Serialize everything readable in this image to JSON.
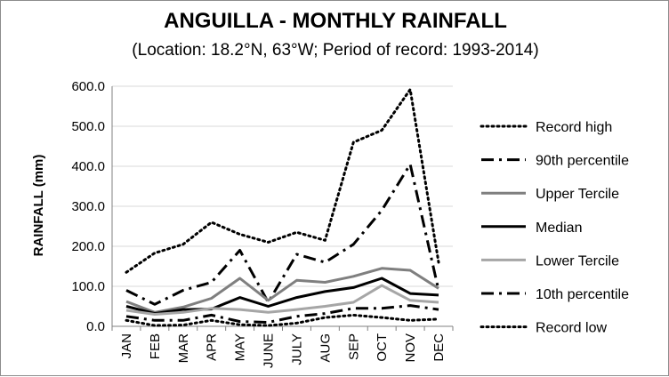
{
  "chart_data": {
    "type": "line",
    "title": "ANGUILLA - MONTHLY RAINFALL",
    "subtitle": "(Location: 18.2°N, 63°W; Period of record: 1993-2014)",
    "xlabel": "",
    "ylabel": "RAINFALL (mm)",
    "ylim": [
      0,
      600
    ],
    "yticks": [
      "0.0",
      "100.0",
      "200.0",
      "300.0",
      "400.0",
      "500.0",
      "600.0"
    ],
    "categories": [
      "JAN",
      "FEB",
      "MAR",
      "APR",
      "MAY",
      "JUNE",
      "JULY",
      "AUG",
      "SEP",
      "OCT",
      "NOV",
      "DEC"
    ],
    "grid": "horizontal",
    "legend_position": "right",
    "series": [
      {
        "name": "Record high",
        "style": "dotted",
        "color": "#000000",
        "values": [
          135,
          183,
          205,
          260,
          230,
          210,
          235,
          215,
          460,
          490,
          592,
          160
        ]
      },
      {
        "name": "90th percentile",
        "style": "dashdot",
        "color": "#000000",
        "values": [
          90,
          55,
          90,
          110,
          190,
          60,
          180,
          160,
          205,
          290,
          405,
          90
        ]
      },
      {
        "name": "Upper Tercile",
        "style": "solid",
        "color": "#7f7f7f",
        "values": [
          62,
          35,
          48,
          70,
          120,
          65,
          115,
          110,
          125,
          145,
          140,
          95
        ]
      },
      {
        "name": "Median",
        "style": "solid",
        "color": "#000000",
        "values": [
          50,
          32,
          42,
          43,
          72,
          50,
          72,
          87,
          97,
          120,
          82,
          78
        ]
      },
      {
        "name": "Lower Tercile",
        "style": "solid",
        "color": "#a6a6a6",
        "values": [
          40,
          30,
          35,
          45,
          42,
          35,
          42,
          50,
          60,
          102,
          65,
          60
        ]
      },
      {
        "name": "10th percentile",
        "style": "dashdot",
        "color": "#000000",
        "values": [
          25,
          15,
          15,
          28,
          12,
          10,
          25,
          32,
          45,
          45,
          52,
          42
        ]
      },
      {
        "name": "Record low",
        "style": "dotted",
        "color": "#000000",
        "values": [
          15,
          2,
          3,
          15,
          4,
          2,
          8,
          22,
          28,
          22,
          15,
          18
        ]
      }
    ]
  }
}
